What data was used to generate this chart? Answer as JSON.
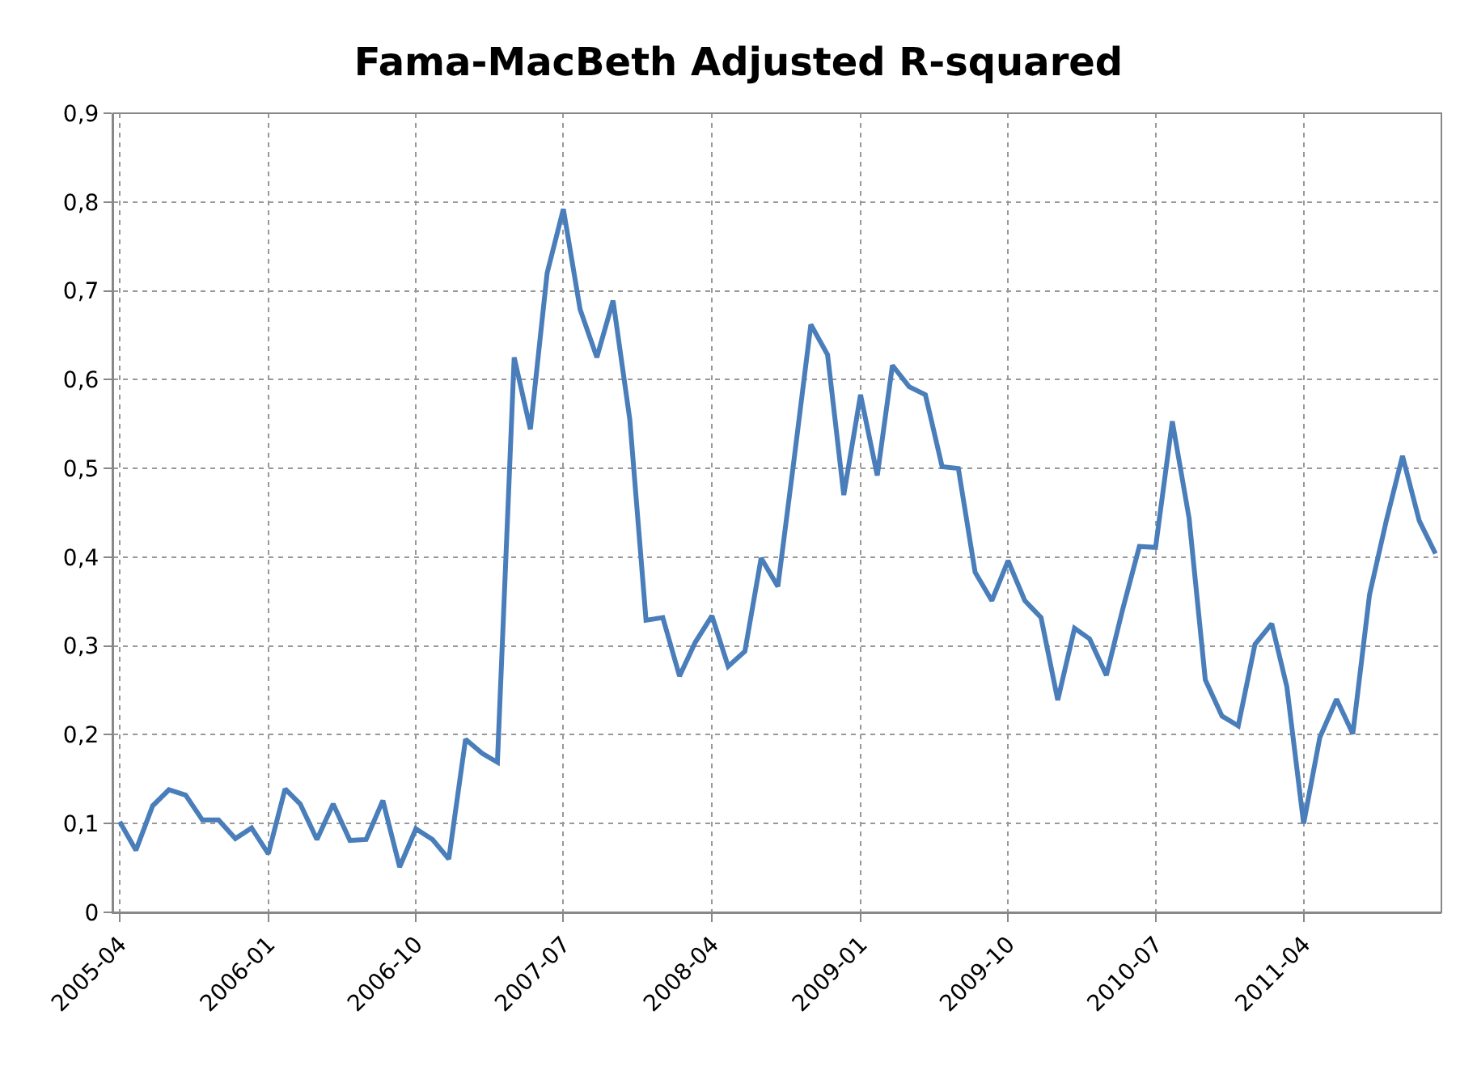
{
  "chart_data": {
    "type": "line",
    "title": "Fama-MacBeth Adjusted R-squared",
    "x": [
      "2005-04",
      "2005-05",
      "2005-06",
      "2005-07",
      "2005-08",
      "2005-09",
      "2005-10",
      "2005-11",
      "2005-12",
      "2006-01",
      "2006-02",
      "2006-03",
      "2006-04",
      "2006-05",
      "2006-06",
      "2006-07",
      "2006-08",
      "2006-09",
      "2006-10",
      "2006-11",
      "2006-12",
      "2007-01",
      "2007-02",
      "2007-03",
      "2007-04",
      "2007-05",
      "2007-06",
      "2007-07",
      "2007-08",
      "2007-09",
      "2007-10",
      "2007-11",
      "2007-12",
      "2008-01",
      "2008-02",
      "2008-03",
      "2008-04",
      "2008-05",
      "2008-06",
      "2008-07",
      "2008-08",
      "2008-09",
      "2008-10",
      "2008-11",
      "2008-12",
      "2009-01",
      "2009-02",
      "2009-03",
      "2009-04",
      "2009-05",
      "2009-06",
      "2009-07",
      "2009-08",
      "2009-09",
      "2009-10",
      "2009-11",
      "2009-12",
      "2010-01",
      "2010-02",
      "2010-03",
      "2010-04",
      "2010-05",
      "2010-06",
      "2010-07",
      "2010-08",
      "2010-09",
      "2010-10",
      "2010-11",
      "2010-12",
      "2011-01",
      "2011-02",
      "2011-03",
      "2011-04",
      "2011-05",
      "2011-06",
      "2011-07",
      "2011-08",
      "2011-09",
      "2011-10",
      "2011-11",
      "2011-12"
    ],
    "series": [
      {
        "color": "#4a7ebb",
        "values": [
          0.102,
          0.07,
          0.12,
          0.138,
          0.132,
          0.104,
          0.104,
          0.083,
          0.095,
          0.066,
          0.139,
          0.122,
          0.082,
          0.122,
          0.081,
          0.082,
          0.126,
          0.051,
          0.094,
          0.082,
          0.06,
          0.195,
          0.179,
          0.169,
          0.625,
          0.544,
          0.72,
          0.792,
          0.679,
          0.625,
          0.689,
          0.555,
          0.329,
          0.332,
          0.266,
          0.304,
          0.334,
          0.277,
          0.294,
          0.399,
          0.367,
          0.515,
          0.662,
          0.628,
          0.47,
          0.583,
          0.492,
          0.616,
          0.592,
          0.583,
          0.502,
          0.5,
          0.383,
          0.351,
          0.396,
          0.351,
          0.332,
          0.239,
          0.32,
          0.308,
          0.267,
          0.341,
          0.412,
          0.411,
          0.553,
          0.444,
          0.262,
          0.221,
          0.21,
          0.302,
          0.325,
          0.254,
          0.1,
          0.197,
          0.24,
          0.201,
          0.358,
          0.441,
          0.514,
          0.441,
          0.404
        ]
      }
    ],
    "xlim": [
      "2005-03-20",
      "2011-12-12"
    ],
    "xticks": [
      "2005-04",
      "2006-01",
      "2006-10",
      "2007-07",
      "2008-04",
      "2009-01",
      "2009-10",
      "2010-07",
      "2011-04"
    ],
    "ylim": [
      0,
      0.9
    ],
    "yticks": [
      0,
      {
        "value": 0.1,
        "label": "0,1"
      },
      {
        "value": 0.2,
        "label": "0,2"
      },
      {
        "value": 0.3,
        "label": "0,3"
      },
      {
        "value": 0.4,
        "label": "0,4"
      },
      {
        "value": 0.5,
        "label": "0,5"
      },
      {
        "value": 0.6,
        "label": "0,6"
      },
      {
        "value": 0.7,
        "label": "0,7"
      },
      {
        "value": 0.8,
        "label": "0,8"
      },
      {
        "value": 0.9,
        "label": "0,9"
      }
    ],
    "grid": true,
    "marker": "none",
    "line_style": "solid"
  }
}
